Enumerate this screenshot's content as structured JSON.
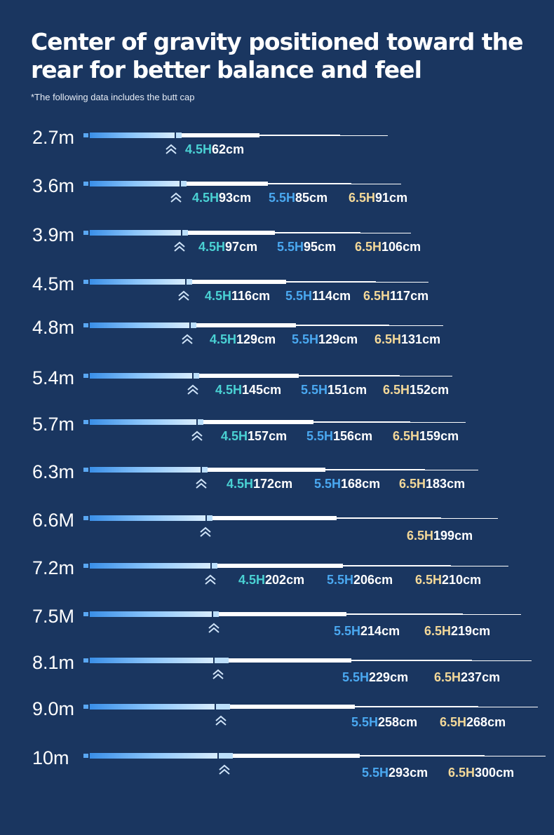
{
  "title_line1": "Center of gravity positioned toward the",
  "title_line2": "rear for better balance and feel",
  "note": "*The following data includes the butt cap",
  "colors": {
    "background": "#1a3660",
    "h45": "#4ad1d3",
    "h55": "#4aa8f0",
    "h65": "#f3d898"
  },
  "rows": [
    {
      "length": "2.7m",
      "h45_grade": "4.5H",
      "h45_value": "62cm"
    },
    {
      "length": "3.6m",
      "h45_grade": "4.5H",
      "h45_value": "93cm",
      "h55_grade": "5.5H",
      "h55_value": "85cm",
      "h65_grade": "6.5H",
      "h65_value": "91cm"
    },
    {
      "length": "3.9m",
      "h45_grade": "4.5H",
      "h45_value": "97cm",
      "h55_grade": "5.5H",
      "h55_value": "95cm",
      "h65_grade": "6.5H",
      "h65_value": "106cm"
    },
    {
      "length": "4.5m",
      "h45_grade": "4.5H",
      "h45_value": "116cm",
      "h55_grade": "5.5H",
      "h55_value": "114cm",
      "h65_grade": "6.5H",
      "h65_value": "117cm"
    },
    {
      "length": "4.8m",
      "h45_grade": "4.5H",
      "h45_value": "129cm",
      "h55_grade": "5.5H",
      "h55_value": "129cm",
      "h65_grade": "6.5H",
      "h65_value": "131cm"
    },
    {
      "length": "5.4m",
      "h45_grade": "4.5H",
      "h45_value": "145cm",
      "h55_grade": "5.5H",
      "h55_value": "151cm",
      "h65_grade": "6.5H",
      "h65_value": "152cm"
    },
    {
      "length": "5.7m",
      "h45_grade": "4.5H",
      "h45_value": "157cm",
      "h55_grade": "5.5H",
      "h55_value": "156cm",
      "h65_grade": "6.5H",
      "h65_value": "159cm"
    },
    {
      "length": "6.3m",
      "h45_grade": "4.5H",
      "h45_value": "172cm",
      "h55_grade": "5.5H",
      "h55_value": "168cm",
      "h65_grade": "6.5H",
      "h65_value": "183cm"
    },
    {
      "length": "6.6M",
      "h65_grade": "6.5H",
      "h65_value": "199cm"
    },
    {
      "length": "7.2m",
      "h45_grade": "4.5H",
      "h45_value": "202cm",
      "h55_grade": "5.5H",
      "h55_value": "206cm",
      "h65_grade": "6.5H",
      "h65_value": "210cm"
    },
    {
      "length": "7.5M",
      "h55_grade": "5.5H",
      "h55_value": "214cm",
      "h65_grade": "6.5H",
      "h65_value": "219cm"
    },
    {
      "length": "8.1m",
      "h55_grade": "5.5H",
      "h55_value": "229cm",
      "h65_grade": "6.5H",
      "h65_value": "237cm"
    },
    {
      "length": "9.0m",
      "h55_grade": "5.5H",
      "h55_value": "258cm",
      "h65_grade": "6.5H",
      "h65_value": "268cm"
    },
    {
      "length": "10m",
      "h55_grade": "5.5H",
      "h55_value": "293cm",
      "h65_grade": "6.5H",
      "h65_value": "300cm"
    }
  ]
}
